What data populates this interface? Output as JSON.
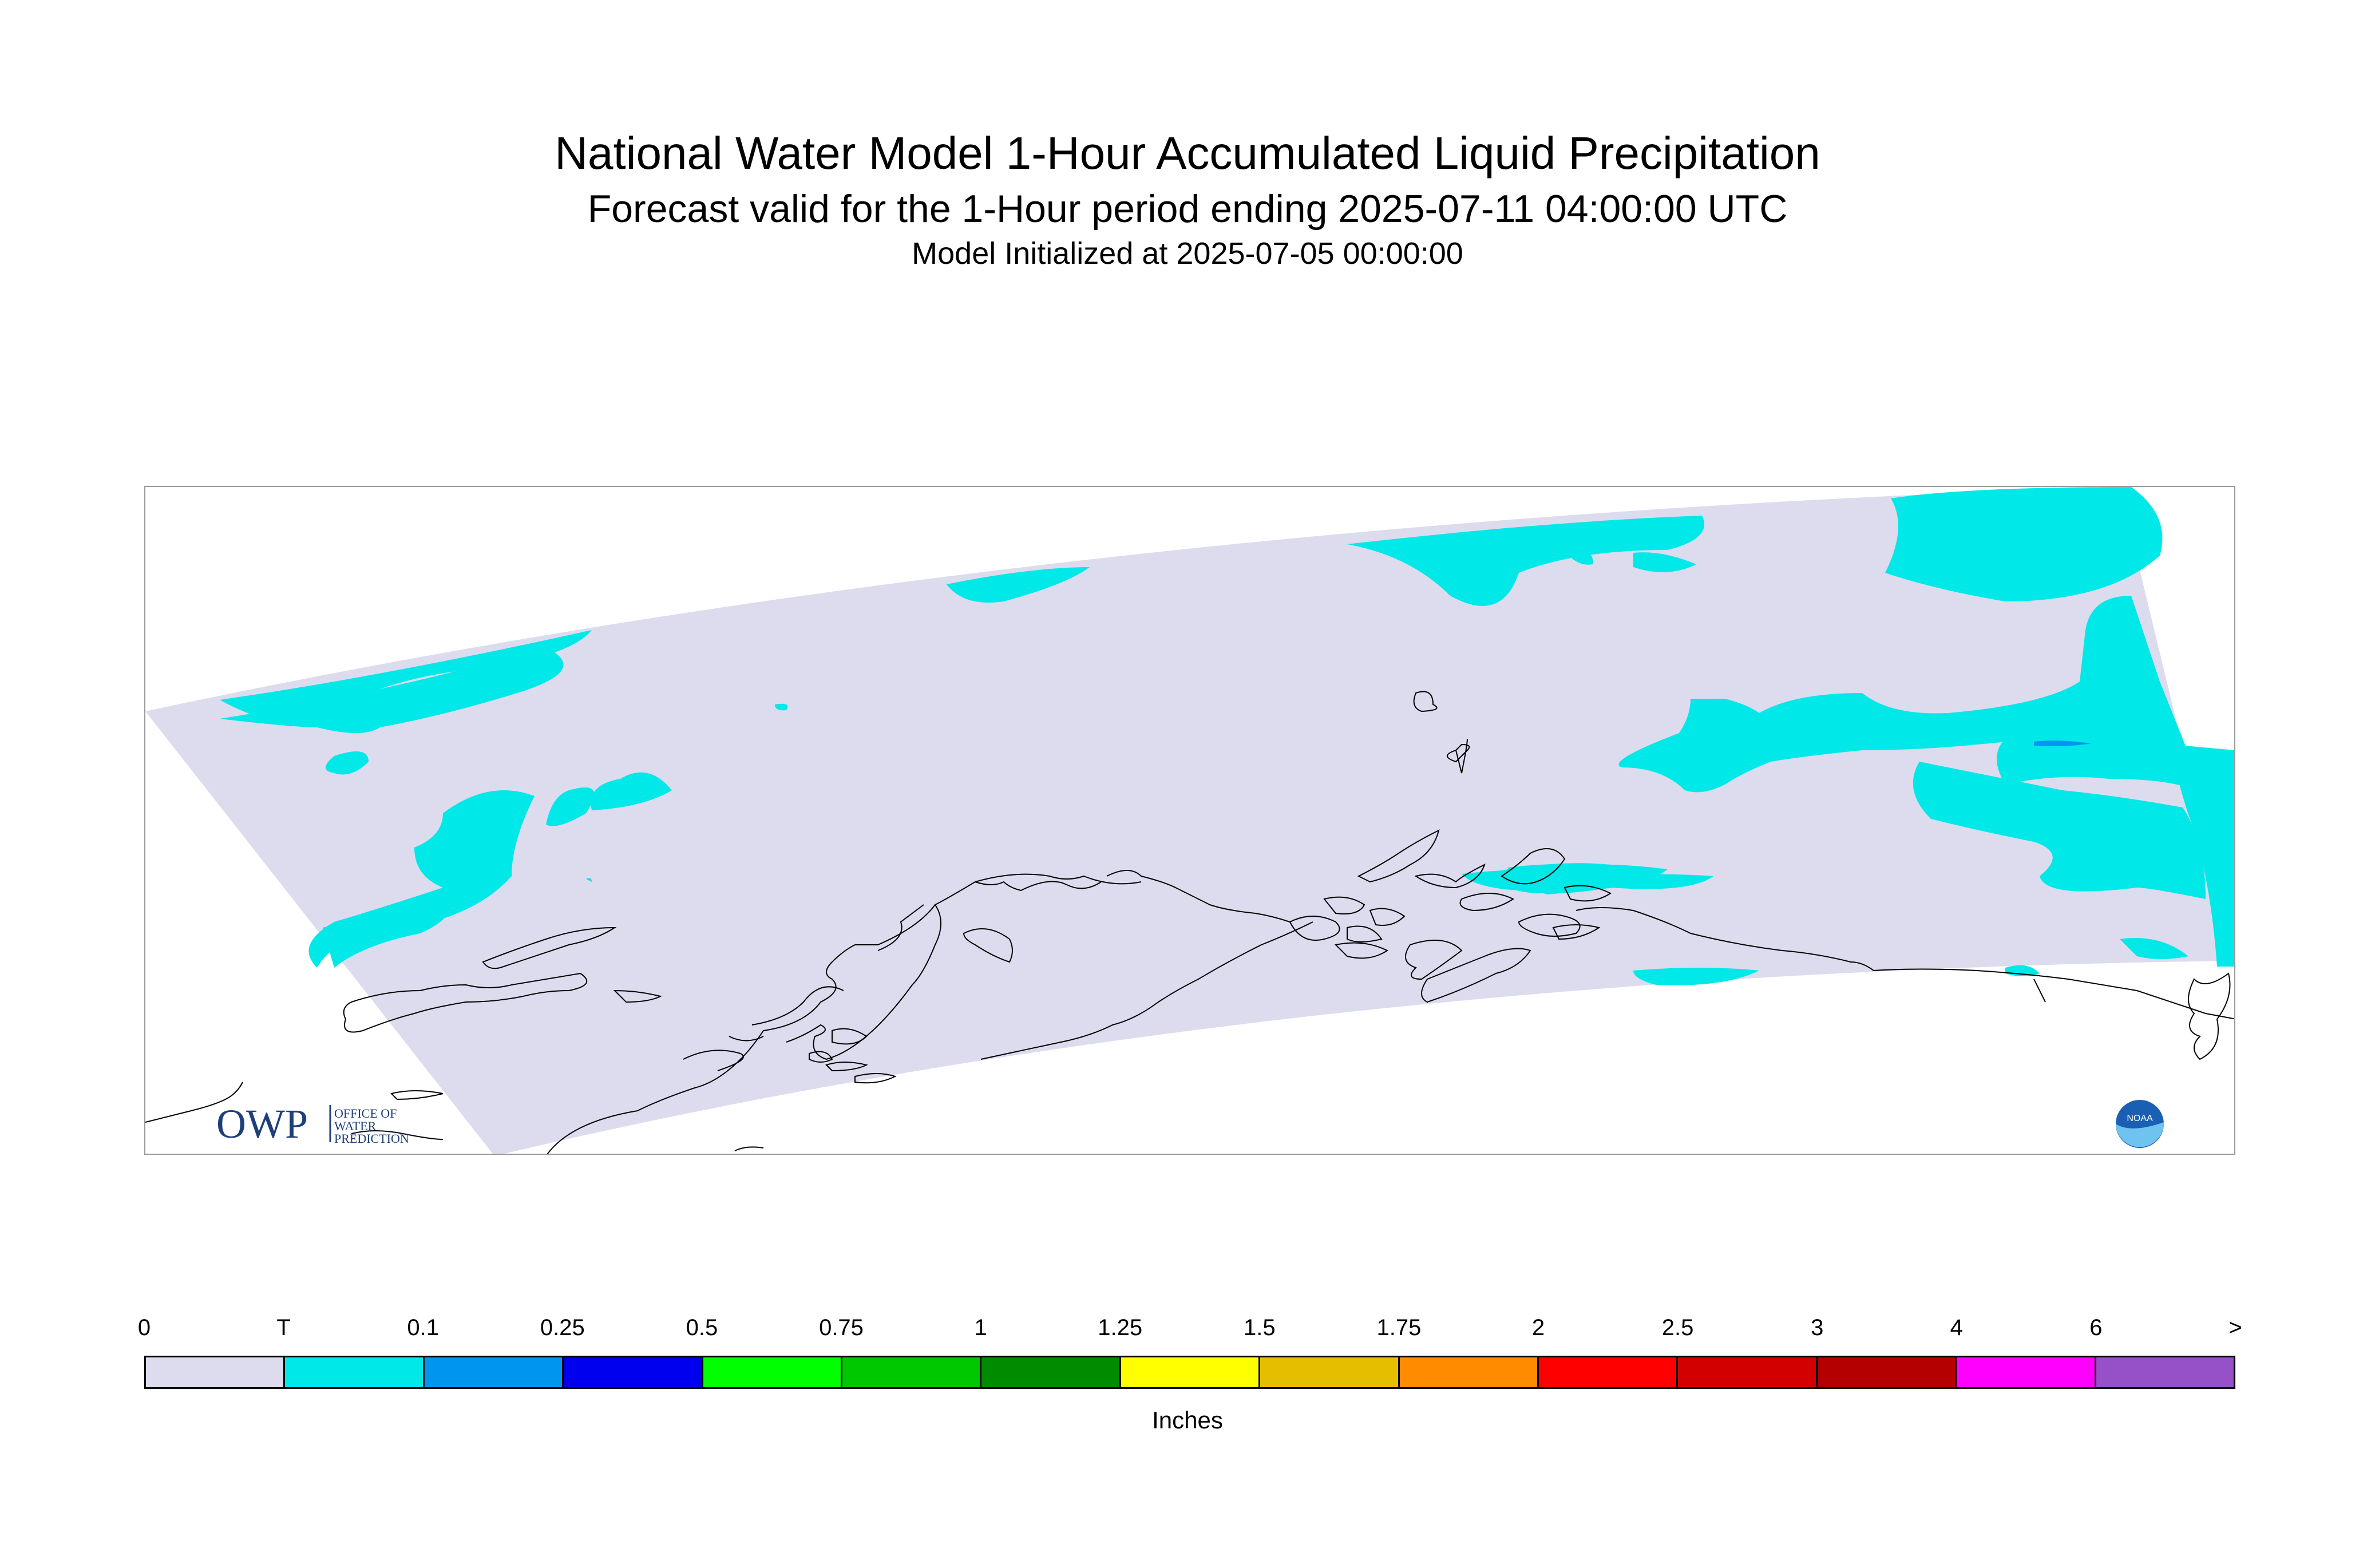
{
  "header": {
    "title": "National Water Model 1-Hour Accumulated Liquid Precipitation",
    "subtitle": "Forecast valid for the 1-Hour period ending 2025-07-11 04:00:00 UTC",
    "init": "Model Initialized at 2025-07-05 00:00:00"
  },
  "map": {
    "domain_fill_color": "#dcdcee",
    "precip_trace_color": "#00e8e8",
    "precip_light_color": "#0096f0",
    "coastline_color": "#000000",
    "logos": {
      "owp": {
        "mark": "OWP",
        "lines": [
          "OFFICE OF",
          "WATER",
          "PREDICTION"
        ],
        "color": "#1f3f7a"
      },
      "noaa": {
        "text": "NOAA",
        "icon": "noaa-logo-icon"
      }
    }
  },
  "legend": {
    "ticks": [
      "0",
      "T",
      "0.1",
      "0.25",
      "0.5",
      "0.75",
      "1",
      "1.25",
      "1.5",
      "1.75",
      "2",
      "2.5",
      "3",
      "4",
      "6",
      ">"
    ],
    "colors": [
      "#dcdcee",
      "#00e8e8",
      "#0096f0",
      "#0000ee",
      "#00ff00",
      "#00c800",
      "#008c00",
      "#ffff00",
      "#e6be00",
      "#ff8c00",
      "#ff0000",
      "#d20000",
      "#b40000",
      "#ff00ff",
      "#9650c8"
    ],
    "units": "Inches"
  }
}
